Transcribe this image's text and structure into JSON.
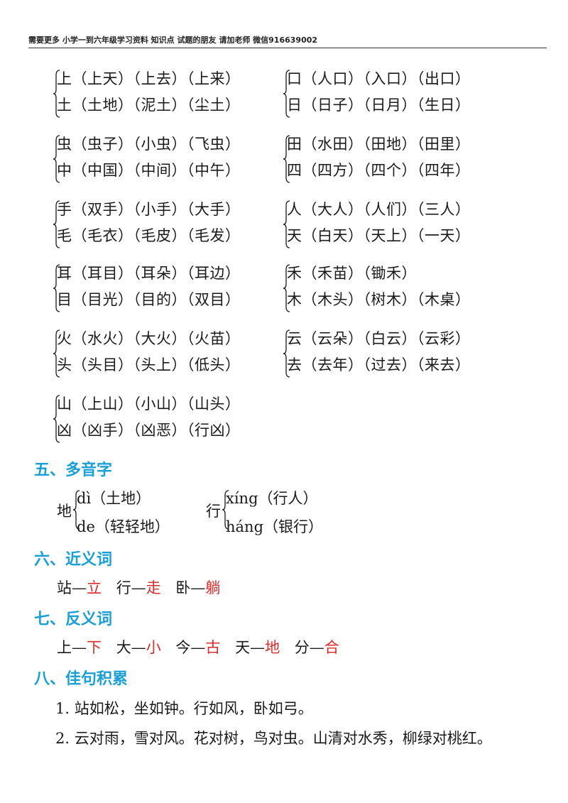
{
  "header": "需要更多 小学一到六年级学习资料 知识点 试题的朋友 请加老师 微信916639002",
  "word_groups": [
    {
      "line1": "上（上天）（上去）（上来）",
      "line2": "土（土地）（泥土）（尘土）"
    },
    {
      "line1": "口（人口）（入口）（出口）",
      "line2": "日（日子）（日月）（生日）"
    },
    {
      "line1": "虫（虫子）（小虫）（飞虫）",
      "line2": "中（中国）（中间）（中午）"
    },
    {
      "line1": "田（水田）（田地）（田里）",
      "line2": "四（四方）（四个）（四年）"
    },
    {
      "line1": "手（双手）（小手）（大手）",
      "line2": "毛（毛衣）（毛皮）（毛发）"
    },
    {
      "line1": "人（大人）（人们）（三人）",
      "line2": "天（白天）（天上）（一天）"
    },
    {
      "line1": "耳（耳目）（耳朵）（耳边）",
      "line2": "目（目光）（目的）（双目）"
    },
    {
      "line1": "禾（禾苗）（锄禾）",
      "line2": "木（木头）（树木）（木桌）"
    },
    {
      "line1": "火（水火）（大火）（火苗）",
      "line2": "头（头目）（头上）（低头）"
    },
    {
      "line1": "云（云朵）（白云）（云彩）",
      "line2": "去（去年）（过去）（来去）"
    },
    {
      "line1": "山（上山）（小山）（山头）",
      "line2": "凶（凶手）（凶恶）（行凶）"
    }
  ],
  "section5": {
    "title": "五、多音字",
    "items": [
      {
        "char": "地",
        "r1": "dì（土地）",
        "r2": "de（轻轻地）"
      },
      {
        "char": "行",
        "r1": "xíng（行人）",
        "r2": "háng（银行）"
      }
    ]
  },
  "section6": {
    "title": "六、近义词",
    "pairs": [
      {
        "a": "站—",
        "b": "立"
      },
      {
        "a": "行—",
        "b": "走"
      },
      {
        "a": "卧—",
        "b": "躺"
      }
    ]
  },
  "section7": {
    "title": "七、反义词",
    "pairs": [
      {
        "a": "上—",
        "b": "下"
      },
      {
        "a": "大—",
        "b": "小"
      },
      {
        "a": "今—",
        "b": "古"
      },
      {
        "a": "天—",
        "b": "地"
      },
      {
        "a": "分—",
        "b": "合"
      }
    ]
  },
  "section8": {
    "title": "八、佳句积累",
    "sentences": [
      "1.  站如松，坐如钟。行如风，卧如弓。",
      "2.  云对雨，雪对风。花对树，鸟对虫。山清对水秀，柳绿对桃红。"
    ]
  },
  "colors": {
    "section_title": "#1aa0d6",
    "answer": "#e02a2a"
  }
}
